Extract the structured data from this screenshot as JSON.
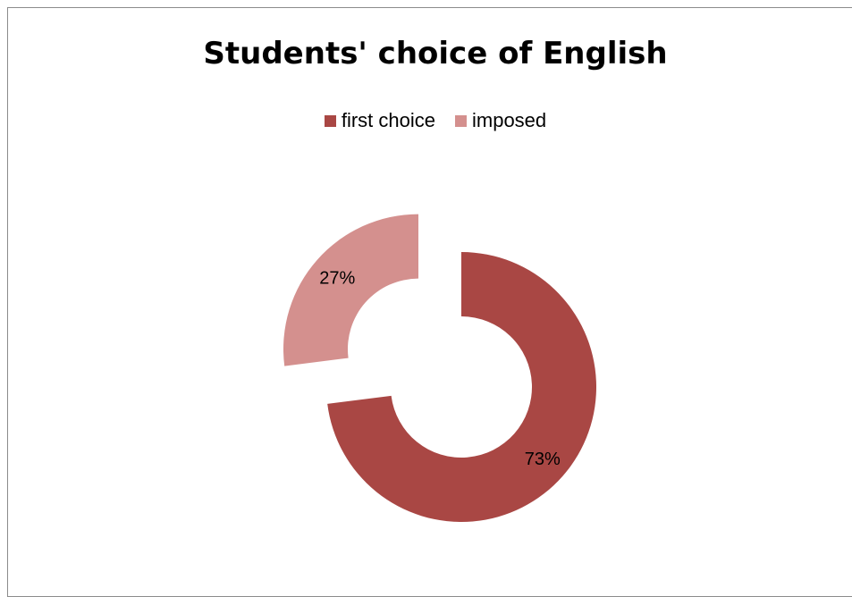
{
  "chart_data": {
    "type": "pie",
    "title": "Students' choice of English",
    "legend_position": "top",
    "series": [
      {
        "name": "first choice",
        "value": 73,
        "label": "73%",
        "color": "#A94744",
        "exploded": false
      },
      {
        "name": "imposed",
        "value": 27,
        "label": "27%",
        "color": "#D4908E",
        "exploded": true
      }
    ]
  }
}
